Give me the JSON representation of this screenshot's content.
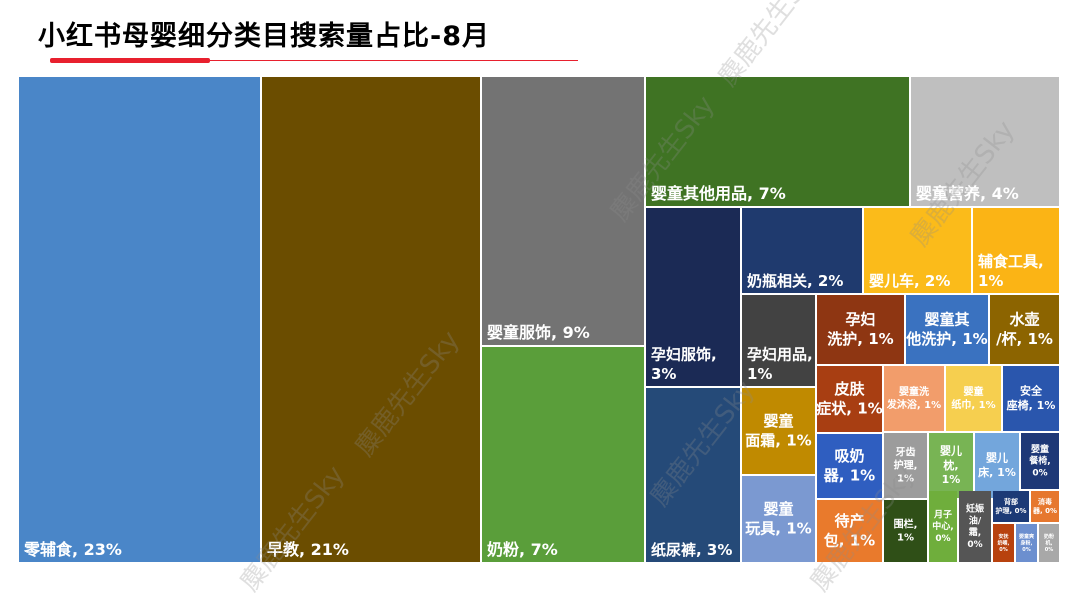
{
  "title": "小红书母婴细分类目搜索量占比-8月",
  "watermark": "麋鹿先生Sky",
  "chart_data": {
    "type": "treemap",
    "title": "小红书母婴细分类目搜索量占比-8月",
    "unit": "%",
    "items": [
      {
        "name": "零辅食",
        "value": 23,
        "label": "零辅食, 23%",
        "color": "#4a86c8",
        "text_color": "#ffffff"
      },
      {
        "name": "早教",
        "value": 21,
        "label": "早教, 21%",
        "color": "#6b4d00",
        "text_color": "#ffffff"
      },
      {
        "name": "婴童服饰",
        "value": 9,
        "label": "婴童服饰, 9%",
        "color": "#737373",
        "text_color": "#ffffff"
      },
      {
        "name": "奶粉",
        "value": 7,
        "label": "奶粉, 7%",
        "color": "#5a9e3a",
        "text_color": "#ffffff"
      },
      {
        "name": "婴童其他用品",
        "value": 7,
        "label": "婴童其他用品, 7%",
        "color": "#3f7323",
        "text_color": "#ffffff"
      },
      {
        "name": "婴童营养",
        "value": 4,
        "label": "婴童营养, 4%",
        "color": "#bfbfbf",
        "text_color": "#ffffff"
      },
      {
        "name": "孕妇服饰",
        "value": 3,
        "label": "孕妇服饰, 3%",
        "color": "#1b2a55",
        "text_color": "#ffffff"
      },
      {
        "name": "纸尿裤",
        "value": 3,
        "label": "纸尿裤, 3%",
        "color": "#254a78",
        "text_color": "#ffffff"
      },
      {
        "name": "奶瓶相关",
        "value": 2,
        "label": "奶瓶相关, 2%",
        "color": "#1f3a6e",
        "text_color": "#ffffff"
      },
      {
        "name": "婴儿车",
        "value": 2,
        "label": "婴儿车, 2%",
        "color": "#fbbb1a",
        "text_color": "#ffffff"
      },
      {
        "name": "辅食工具",
        "value": 1,
        "label": "辅食工具, 1%",
        "color": "#fbb415",
        "text_color": "#ffffff"
      },
      {
        "name": "孕妇用品",
        "value": 1,
        "label": "孕妇用品, 1%",
        "color": "#424242",
        "text_color": "#ffffff"
      },
      {
        "name": "孕妇洗护",
        "value": 1,
        "label": "孕妇洗护, 1%",
        "color": "#8e3612",
        "text_color": "#ffffff"
      },
      {
        "name": "婴童其他洗护",
        "value": 1,
        "label": "婴童其他洗护, 1%",
        "color": "#3a72c0",
        "text_color": "#ffffff"
      },
      {
        "name": "水壶/杯",
        "value": 1,
        "label": "水壶/杯, 1%",
        "color": "#8c6400",
        "text_color": "#ffffff"
      },
      {
        "name": "婴童面霜",
        "value": 1,
        "label": "婴童面霜, 1%",
        "color": "#c08a00",
        "text_color": "#ffffff"
      },
      {
        "name": "婴童玩具",
        "value": 1,
        "label": "婴童玩具, 1%",
        "color": "#7b99d1",
        "text_color": "#ffffff"
      },
      {
        "name": "皮肤症状",
        "value": 1,
        "label": "皮肤症状, 1%",
        "color": "#a83e12",
        "text_color": "#ffffff"
      },
      {
        "name": "吸奶器",
        "value": 1,
        "label": "吸奶器, 1%",
        "color": "#2f5ec0",
        "text_color": "#ffffff"
      },
      {
        "name": "待产包",
        "value": 1,
        "label": "待产包, 1%",
        "color": "#e97a2c",
        "text_color": "#ffffff"
      },
      {
        "name": "婴童洗发沐浴",
        "value": 1,
        "label": "婴童洗发沐浴, 1%",
        "color": "#f29d6b",
        "text_color": "#ffffff"
      },
      {
        "name": "婴童纸巾",
        "value": 1,
        "label": "婴童纸巾, 1%",
        "color": "#f6cf4f",
        "text_color": "#ffffff"
      },
      {
        "name": "安全座椅",
        "value": 1,
        "label": "安全座椅, 1%",
        "color": "#2a56ad",
        "text_color": "#ffffff"
      },
      {
        "name": "牙齿护理",
        "value": 1,
        "label": "牙齿护理, 1%",
        "color": "#9c9c9c",
        "text_color": "#ffffff"
      },
      {
        "name": "婴儿枕",
        "value": 1,
        "label": "婴儿枕, 1%",
        "color": "#78b454",
        "text_color": "#ffffff"
      },
      {
        "name": "婴儿床",
        "value": 1,
        "label": "婴儿床, 1%",
        "color": "#73a6dc",
        "text_color": "#ffffff"
      },
      {
        "name": "婴童餐椅",
        "value": 0,
        "label": "婴童餐椅, 0%",
        "color": "#1e3877",
        "text_color": "#ffffff"
      },
      {
        "name": "围栏",
        "value": 1,
        "label": "围栏, 1%",
        "color": "#2f4f17",
        "text_color": "#ffffff"
      },
      {
        "name": "月子中心",
        "value": 0,
        "label": "月子中心, 0%",
        "color": "#6fae3c",
        "text_color": "#ffffff"
      },
      {
        "name": "妊娠油/霜",
        "value": 0,
        "label": "妊娠油/霜, 0%",
        "color": "#555555",
        "text_color": "#ffffff"
      },
      {
        "name": "背部护理",
        "value": 0,
        "label": "背部护理, 0%",
        "color": "#1c3a76",
        "text_color": "#ffffff"
      },
      {
        "name": "消毒器",
        "value": 0,
        "label": "消毒器, 0%",
        "color": "#e6772e",
        "text_color": "#ffffff"
      },
      {
        "name": "安抚奶嘴",
        "value": 0,
        "label": "安抚奶嘴, 0%",
        "color": "#b8420e",
        "text_color": "#ffffff"
      },
      {
        "name": "婴童爽身粉",
        "value": 0,
        "label": "婴童爽身粉, 0%",
        "color": "#6c8fcf",
        "text_color": "#ffffff"
      },
      {
        "name": "奶粉机",
        "value": 0,
        "label": "奶粉机, 0%",
        "color": "#a8a8a8",
        "text_color": "#ffffff"
      }
    ]
  }
}
